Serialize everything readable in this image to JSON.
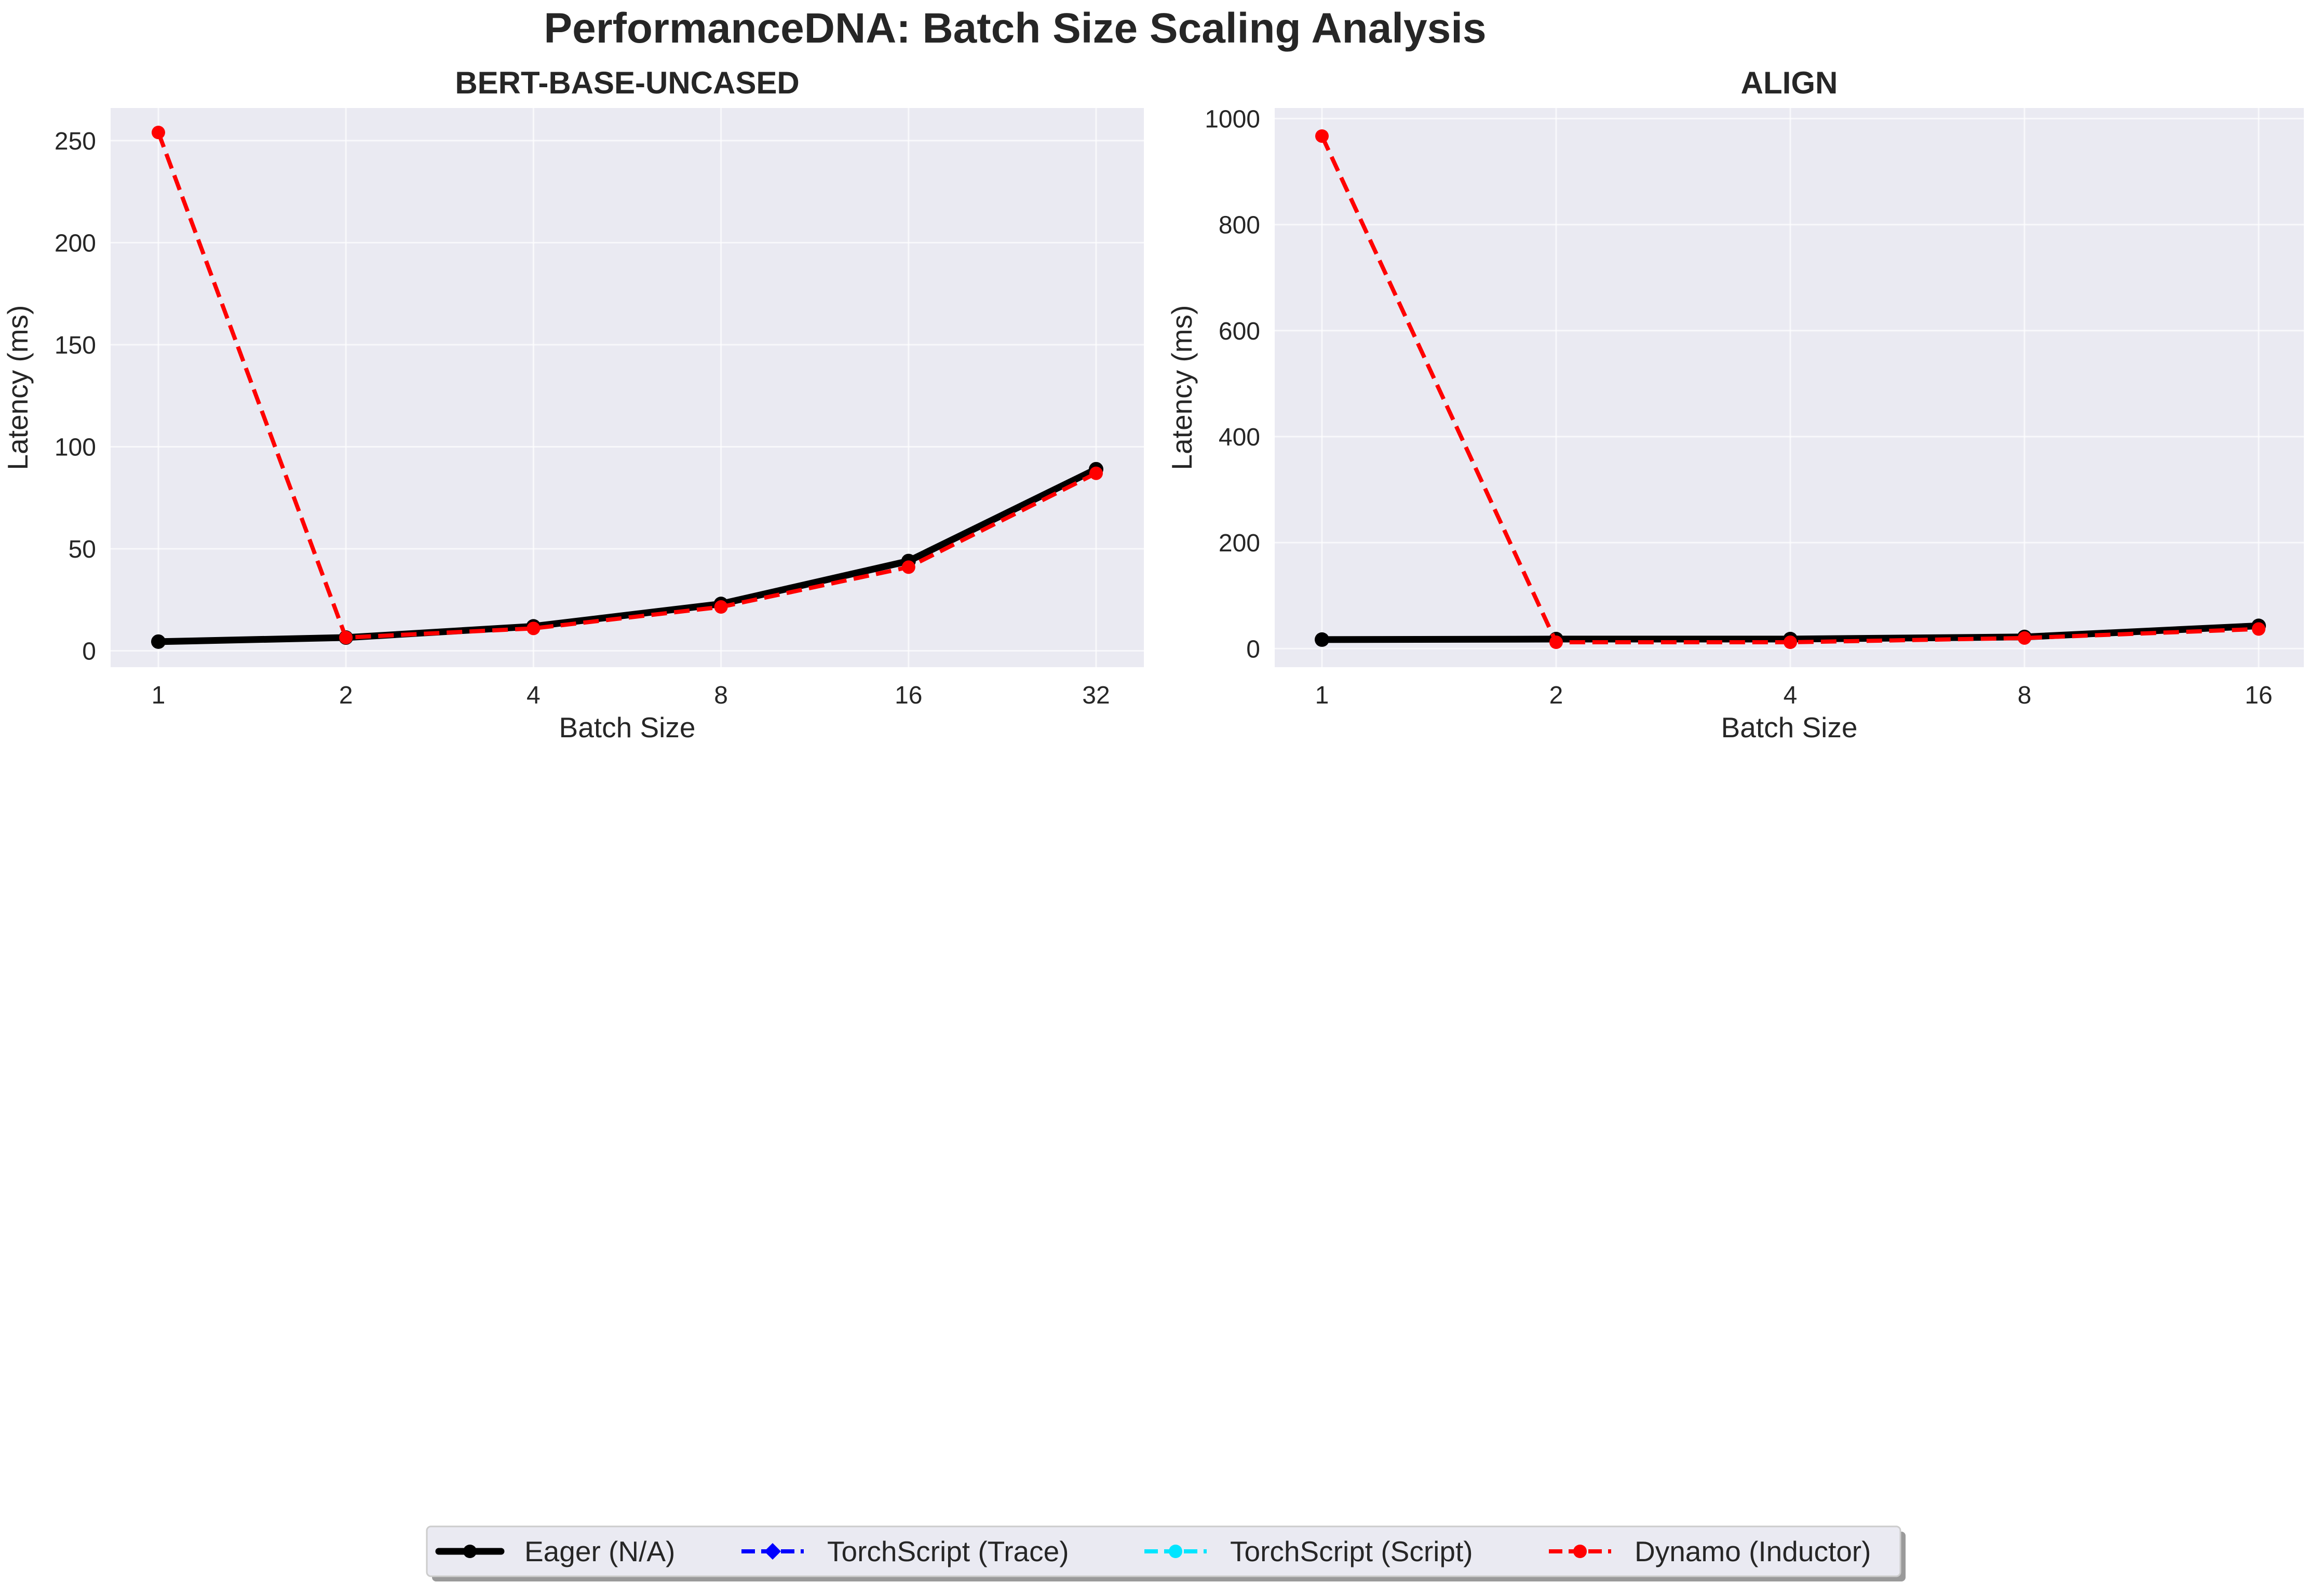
{
  "figure": {
    "title": "PerformanceDNA: Batch Size Scaling Analysis"
  },
  "legend": {
    "placement": "bottom-center",
    "entries": [
      {
        "label": "Eager (N/A)",
        "color": "#000000",
        "style": "solid",
        "marker": "circle"
      },
      {
        "label": "TorchScript (Trace)",
        "color": "#0000ff",
        "style": "dashed",
        "marker": "diamond"
      },
      {
        "label": "TorchScript (Script)",
        "color": "#00e5ff",
        "style": "dashed",
        "marker": "circle"
      },
      {
        "label": "Dynamo (Inductor)",
        "color": "#ff0000",
        "style": "dashed",
        "marker": "circle"
      }
    ]
  },
  "chart_data": [
    {
      "type": "line",
      "title": "BERT-BASE-UNCASED",
      "xlabel": "Batch Size",
      "ylabel": "Latency (ms)",
      "x_categories": [
        "1",
        "2",
        "4",
        "8",
        "16",
        "32"
      ],
      "ylim": [
        -8,
        266
      ],
      "y_ticks": [
        0,
        50,
        100,
        150,
        200,
        250
      ],
      "grid": true,
      "background": "#eaeaf2",
      "series": [
        {
          "name": "Eager (N/A)",
          "color": "#000000",
          "style": "solid",
          "values": [
            4.5,
            6.5,
            12,
            23,
            44,
            89
          ]
        },
        {
          "name": "Dynamo (Inductor)",
          "color": "#ff0000",
          "style": "dashed",
          "values": [
            254,
            6.5,
            11,
            21.5,
            41,
            87
          ]
        }
      ]
    },
    {
      "type": "line",
      "title": "ALIGN",
      "xlabel": "Batch Size",
      "ylabel": "Latency (ms)",
      "x_categories": [
        "1",
        "2",
        "4",
        "8",
        "16"
      ],
      "ylim": [
        -35,
        1020
      ],
      "y_ticks": [
        0,
        200,
        400,
        600,
        800,
        1000
      ],
      "grid": true,
      "background": "#eaeaf2",
      "series": [
        {
          "name": "Eager (N/A)",
          "color": "#000000",
          "style": "solid",
          "values": [
            17,
            18,
            18,
            22,
            43
          ]
        },
        {
          "name": "Dynamo (Inductor)",
          "color": "#ff0000",
          "style": "dashed",
          "values": [
            967,
            12,
            12,
            20,
            37
          ]
        }
      ]
    }
  ]
}
